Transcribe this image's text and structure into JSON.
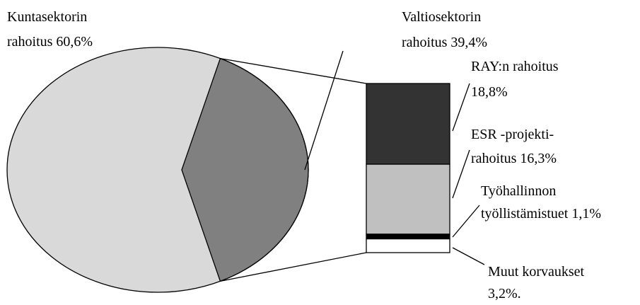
{
  "chart_data": {
    "type": "bar-of-pie",
    "pie": {
      "labels": [
        [
          "Kuntasektorin",
          "rahoitus 60,6%"
        ],
        [
          "Valtiosektorin",
          "rahoitus 39,4%"
        ]
      ],
      "values": [
        60.6,
        39.4
      ],
      "colors": [
        "#d9d9d9",
        "#808080"
      ]
    },
    "bar": {
      "labels": [
        [
          "RAY:n rahoitus",
          "18,8%"
        ],
        [
          "ESR -projekti-",
          "rahoitus 16,3%"
        ],
        [
          "Työhallinnon",
          "työllistämistuet 1,1%"
        ],
        [
          "Muut korvaukset",
          "3,2%."
        ]
      ],
      "values": [
        18.8,
        16.3,
        1.1,
        3.2
      ],
      "colors": [
        "#333333",
        "#c0c0c0",
        "#000000",
        "#ffffff"
      ]
    }
  }
}
